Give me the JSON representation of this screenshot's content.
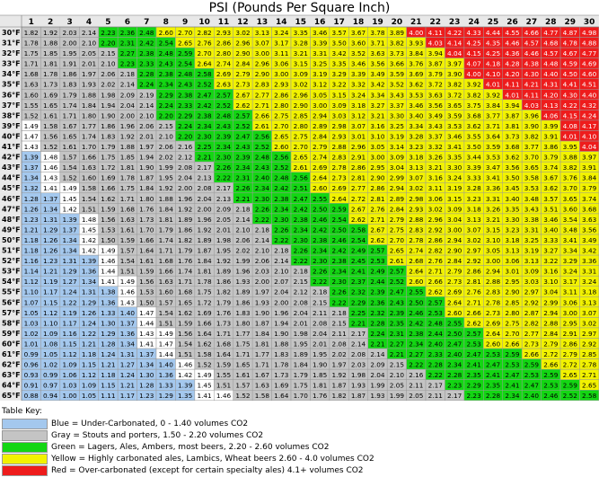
{
  "chart_data": {
    "type": "heatmap",
    "title": "PSI (Pounds Per Square Inch)",
    "xlabel": "",
    "ylabel": "",
    "x": [
      "1",
      "2",
      "3",
      "4",
      "5",
      "6",
      "7",
      "8",
      "9",
      "10",
      "11",
      "12",
      "13",
      "14",
      "15",
      "16",
      "17",
      "18",
      "19",
      "20",
      "21",
      "22",
      "23",
      "24",
      "25",
      "26",
      "27",
      "28",
      "29",
      "30"
    ],
    "y": [
      "30°F",
      "31°F",
      "32°F",
      "33°F",
      "34°F",
      "35°F",
      "36°F",
      "37°F",
      "38°F",
      "39°F",
      "40°F",
      "41°F",
      "42°F",
      "43°F",
      "44°F",
      "45°F",
      "46°F",
      "47°F",
      "48°F",
      "49°F",
      "50°F",
      "51°F",
      "52°F",
      "53°F",
      "54°F",
      "55°F",
      "56°F",
      "57°F",
      "58°F",
      "59°F",
      "60°F",
      "61°F",
      "62°F",
      "63°F",
      "64°F",
      "65°F"
    ],
    "values": [
      [
        1.82,
        1.92,
        2.03,
        2.14,
        2.23,
        2.36,
        2.48,
        2.6,
        2.7,
        2.82,
        2.93,
        3.02,
        3.13,
        3.24,
        3.35,
        3.46,
        3.57,
        3.67,
        3.78,
        3.89,
        4.0,
        4.11,
        4.22,
        4.33,
        4.44,
        4.55,
        4.66,
        4.77,
        4.87,
        4.98
      ],
      [
        1.78,
        1.88,
        2.0,
        2.1,
        2.2,
        2.31,
        2.42,
        2.54,
        2.65,
        2.76,
        2.86,
        2.96,
        3.07,
        3.17,
        3.28,
        3.39,
        3.5,
        3.6,
        3.71,
        3.82,
        3.93,
        4.03,
        4.14,
        4.25,
        4.35,
        4.46,
        4.57,
        4.68,
        4.78,
        4.88
      ],
      [
        1.75,
        1.85,
        1.95,
        2.05,
        2.15,
        2.27,
        2.38,
        2.48,
        2.59,
        2.7,
        2.8,
        2.9,
        3.0,
        3.11,
        3.21,
        3.31,
        3.42,
        3.52,
        3.63,
        3.73,
        3.84,
        3.94,
        4.04,
        4.15,
        4.25,
        4.36,
        4.46,
        4.57,
        4.67,
        4.77
      ],
      [
        1.71,
        1.81,
        1.91,
        2.01,
        2.1,
        2.23,
        2.33,
        2.43,
        2.54,
        2.64,
        2.74,
        2.84,
        2.96,
        3.06,
        3.15,
        3.25,
        3.35,
        3.46,
        3.56,
        3.66,
        3.76,
        3.87,
        3.97,
        4.07,
        4.18,
        4.28,
        4.38,
        4.48,
        4.59,
        4.69
      ],
      [
        1.68,
        1.78,
        1.86,
        1.97,
        2.06,
        2.18,
        2.28,
        2.38,
        2.48,
        2.58,
        2.69,
        2.79,
        2.9,
        3.0,
        3.09,
        3.19,
        3.29,
        3.39,
        3.49,
        3.59,
        3.69,
        3.79,
        3.9,
        4.0,
        4.1,
        4.2,
        4.3,
        4.4,
        4.5,
        4.6
      ],
      [
        1.63,
        1.73,
        1.83,
        1.93,
        2.02,
        2.14,
        2.24,
        2.34,
        2.43,
        2.52,
        2.63,
        2.73,
        2.83,
        2.93,
        3.02,
        3.12,
        3.22,
        3.32,
        3.42,
        3.52,
        3.62,
        3.72,
        3.82,
        3.92,
        4.01,
        4.11,
        4.21,
        4.31,
        4.41,
        4.51
      ],
      [
        1.6,
        1.69,
        1.79,
        1.88,
        1.98,
        2.09,
        2.19,
        2.29,
        2.38,
        2.47,
        2.57,
        2.67,
        2.77,
        2.86,
        2.96,
        3.05,
        3.15,
        3.24,
        3.34,
        3.43,
        3.53,
        3.63,
        3.72,
        3.82,
        3.92,
        4.01,
        4.11,
        4.2,
        4.3,
        4.4
      ],
      [
        1.55,
        1.65,
        1.74,
        1.84,
        1.94,
        2.04,
        2.14,
        2.24,
        2.33,
        2.42,
        2.52,
        2.62,
        2.71,
        2.8,
        2.9,
        3.0,
        3.09,
        3.18,
        3.27,
        3.37,
        3.46,
        3.56,
        3.65,
        3.75,
        3.84,
        3.94,
        4.03,
        4.13,
        4.22,
        4.32
      ],
      [
        1.52,
        1.61,
        1.71,
        1.8,
        1.9,
        2.0,
        2.1,
        2.2,
        2.29,
        2.38,
        2.48,
        2.57,
        2.66,
        2.75,
        2.85,
        2.94,
        3.03,
        3.12,
        3.21,
        3.3,
        3.4,
        3.49,
        3.59,
        3.68,
        3.77,
        3.87,
        3.96,
        4.06,
        4.15,
        4.24
      ],
      [
        1.49,
        1.58,
        1.67,
        1.77,
        1.86,
        1.96,
        2.06,
        2.15,
        2.24,
        2.34,
        2.43,
        2.52,
        2.61,
        2.7,
        2.8,
        2.89,
        2.98,
        3.07,
        3.16,
        3.25,
        3.34,
        3.43,
        3.53,
        3.62,
        3.71,
        3.81,
        3.9,
        3.99,
        4.08,
        4.17
      ],
      [
        1.47,
        1.56,
        1.65,
        1.74,
        1.83,
        1.92,
        2.01,
        2.1,
        2.2,
        2.3,
        2.39,
        2.47,
        2.56,
        2.65,
        2.75,
        2.84,
        2.93,
        3.01,
        3.1,
        3.19,
        3.28,
        3.37,
        3.46,
        3.55,
        3.64,
        3.73,
        3.82,
        3.91,
        4.01,
        4.1
      ],
      [
        1.43,
        1.52,
        1.61,
        1.7,
        1.79,
        1.88,
        1.97,
        2.06,
        2.16,
        2.25,
        2.34,
        2.43,
        2.52,
        2.6,
        2.7,
        2.79,
        2.88,
        2.96,
        3.05,
        3.14,
        3.23,
        3.32,
        3.41,
        3.5,
        3.59,
        3.68,
        3.77,
        3.86,
        3.95,
        4.04
      ],
      [
        1.39,
        1.48,
        1.57,
        1.66,
        1.75,
        1.85,
        1.94,
        2.02,
        2.12,
        2.21,
        2.3,
        2.39,
        2.48,
        2.56,
        2.65,
        2.74,
        2.83,
        2.91,
        3.0,
        3.09,
        3.18,
        3.26,
        3.35,
        3.44,
        3.53,
        3.62,
        3.7,
        3.79,
        3.88,
        3.97
      ],
      [
        1.37,
        1.46,
        1.54,
        1.63,
        1.72,
        1.81,
        1.9,
        1.99,
        2.08,
        2.17,
        2.26,
        2.34,
        2.43,
        2.52,
        2.61,
        2.69,
        2.78,
        2.86,
        2.95,
        3.04,
        3.13,
        3.21,
        3.3,
        3.39,
        3.47,
        3.56,
        3.65,
        3.74,
        3.82,
        3.91
      ],
      [
        1.34,
        1.43,
        1.52,
        1.6,
        1.69,
        1.78,
        1.87,
        1.95,
        2.04,
        2.13,
        2.22,
        2.31,
        2.4,
        2.48,
        2.56,
        2.64,
        2.73,
        2.81,
        2.9,
        2.99,
        3.07,
        3.16,
        3.24,
        3.33,
        3.41,
        3.5,
        3.58,
        3.67,
        3.76,
        3.84
      ],
      [
        1.32,
        1.41,
        1.49,
        1.58,
        1.66,
        1.75,
        1.84,
        1.92,
        2.0,
        2.08,
        2.17,
        2.26,
        2.34,
        2.42,
        2.51,
        2.6,
        2.69,
        2.77,
        2.86,
        2.94,
        3.02,
        3.11,
        3.19,
        3.28,
        3.36,
        3.45,
        3.53,
        3.62,
        3.7,
        3.79
      ],
      [
        1.28,
        1.37,
        1.45,
        1.54,
        1.62,
        1.71,
        1.8,
        1.88,
        1.96,
        2.04,
        2.13,
        2.21,
        2.3,
        2.38,
        2.47,
        2.55,
        2.64,
        2.72,
        2.81,
        2.89,
        2.98,
        3.06,
        3.15,
        3.23,
        3.31,
        3.4,
        3.48,
        3.57,
        3.65,
        3.74
      ],
      [
        1.26,
        1.34,
        1.42,
        1.51,
        1.59,
        1.68,
        1.76,
        1.84,
        1.92,
        2.0,
        2.09,
        2.18,
        2.26,
        2.34,
        2.42,
        2.5,
        2.59,
        2.67,
        2.76,
        2.84,
        2.93,
        3.02,
        3.09,
        3.18,
        3.26,
        3.35,
        3.43,
        3.51,
        3.6,
        3.68
      ],
      [
        1.23,
        1.31,
        1.39,
        1.48,
        1.56,
        1.63,
        1.73,
        1.81,
        1.89,
        1.96,
        2.05,
        2.14,
        2.22,
        2.3,
        2.38,
        2.46,
        2.54,
        2.62,
        2.71,
        2.79,
        2.88,
        2.96,
        3.04,
        3.13,
        3.21,
        3.3,
        3.38,
        3.46,
        3.54,
        3.63
      ],
      [
        1.21,
        1.29,
        1.37,
        1.45,
        1.53,
        1.61,
        1.7,
        1.79,
        1.86,
        1.92,
        2.01,
        2.1,
        2.18,
        2.26,
        2.34,
        2.42,
        2.5,
        2.58,
        2.67,
        2.75,
        2.83,
        2.92,
        3.0,
        3.07,
        3.15,
        3.23,
        3.31,
        3.4,
        3.48,
        3.56
      ],
      [
        1.18,
        1.26,
        1.34,
        1.42,
        1.5,
        1.59,
        1.66,
        1.74,
        1.82,
        1.89,
        1.98,
        2.06,
        2.14,
        2.22,
        2.3,
        2.38,
        2.46,
        2.54,
        2.62,
        2.7,
        2.78,
        2.86,
        2.94,
        3.02,
        3.1,
        3.18,
        3.25,
        3.33,
        3.41,
        3.49
      ],
      [
        1.18,
        1.26,
        1.34,
        1.42,
        1.49,
        1.57,
        1.64,
        1.71,
        1.79,
        1.87,
        1.95,
        2.02,
        2.1,
        2.18,
        2.26,
        2.34,
        2.42,
        2.49,
        2.57,
        2.65,
        2.74,
        2.82,
        2.9,
        2.97,
        3.05,
        3.13,
        3.19,
        3.27,
        3.34,
        3.42
      ],
      [
        1.16,
        1.23,
        1.31,
        1.39,
        1.46,
        1.54,
        1.61,
        1.68,
        1.76,
        1.84,
        1.92,
        1.99,
        2.06,
        2.14,
        2.22,
        2.3,
        2.38,
        2.45,
        2.53,
        2.61,
        2.68,
        2.76,
        2.84,
        2.92,
        3.0,
        3.06,
        3.13,
        3.22,
        3.29,
        3.36
      ],
      [
        1.14,
        1.21,
        1.29,
        1.36,
        1.44,
        1.51,
        1.59,
        1.66,
        1.74,
        1.81,
        1.89,
        1.96,
        2.03,
        2.1,
        2.18,
        2.26,
        2.34,
        2.41,
        2.49,
        2.57,
        2.64,
        2.71,
        2.79,
        2.86,
        2.94,
        3.01,
        3.09,
        3.16,
        3.24,
        3.31
      ],
      [
        1.12,
        1.19,
        1.27,
        1.34,
        1.41,
        1.49,
        1.56,
        1.63,
        1.71,
        1.78,
        1.86,
        1.93,
        2.0,
        2.07,
        2.15,
        2.22,
        2.3,
        2.37,
        2.44,
        2.52,
        2.6,
        2.66,
        2.73,
        2.81,
        2.88,
        2.95,
        3.03,
        3.1,
        3.17,
        3.24
      ],
      [
        1.1,
        1.17,
        1.24,
        1.31,
        1.38,
        1.46,
        1.53,
        1.6,
        1.68,
        1.75,
        1.82,
        1.89,
        1.97,
        2.04,
        2.12,
        2.18,
        2.26,
        2.32,
        2.39,
        2.47,
        2.55,
        2.62,
        2.69,
        2.76,
        2.83,
        2.9,
        2.97,
        3.04,
        3.11,
        3.18
      ],
      [
        1.07,
        1.15,
        1.22,
        1.29,
        1.36,
        1.43,
        1.5,
        1.57,
        1.65,
        1.72,
        1.79,
        1.86,
        1.93,
        2.0,
        2.08,
        2.15,
        2.22,
        2.29,
        2.36,
        2.43,
        2.5,
        2.57,
        2.64,
        2.71,
        2.78,
        2.85,
        2.92,
        2.99,
        3.06,
        3.13
      ],
      [
        1.05,
        1.12,
        1.19,
        1.26,
        1.33,
        1.4,
        1.47,
        1.54,
        1.62,
        1.69,
        1.76,
        1.83,
        1.9,
        1.96,
        2.04,
        2.11,
        2.18,
        2.25,
        2.32,
        2.39,
        2.46,
        2.53,
        2.6,
        2.66,
        2.73,
        2.8,
        2.87,
        2.94,
        3.0,
        3.07
      ],
      [
        1.03,
        1.1,
        1.17,
        1.24,
        1.3,
        1.37,
        1.44,
        1.51,
        1.59,
        1.66,
        1.73,
        1.8,
        1.87,
        1.94,
        2.01,
        2.08,
        2.15,
        2.21,
        2.28,
        2.35,
        2.42,
        2.48,
        2.55,
        2.62,
        2.69,
        2.75,
        2.82,
        2.88,
        2.95,
        3.02
      ],
      [
        1.02,
        1.09,
        1.16,
        1.22,
        1.29,
        1.36,
        1.43,
        1.49,
        1.56,
        1.64,
        1.71,
        1.77,
        1.84,
        1.9,
        1.98,
        2.04,
        2.11,
        2.17,
        2.24,
        2.31,
        2.38,
        2.44,
        2.5,
        2.57,
        2.64,
        2.7,
        2.77,
        2.84,
        2.91,
        2.97
      ],
      [
        1.01,
        1.08,
        1.15,
        1.21,
        1.28,
        1.34,
        1.41,
        1.47,
        1.54,
        1.62,
        1.68,
        1.75,
        1.81,
        1.88,
        1.95,
        2.01,
        2.08,
        2.14,
        2.21,
        2.27,
        2.34,
        2.4,
        2.47,
        2.53,
        2.6,
        2.66,
        2.73,
        2.79,
        2.86,
        2.92
      ],
      [
        0.99,
        1.05,
        1.12,
        1.18,
        1.24,
        1.31,
        1.37,
        1.44,
        1.51,
        1.58,
        1.64,
        1.71,
        1.77,
        1.83,
        1.89,
        1.95,
        2.02,
        2.08,
        2.14,
        2.21,
        2.27,
        2.33,
        2.4,
        2.47,
        2.53,
        2.59,
        2.66,
        2.72,
        2.79,
        2.85
      ],
      [
        0.96,
        1.02,
        1.09,
        1.15,
        1.21,
        1.27,
        1.34,
        1.4,
        1.46,
        1.52,
        1.59,
        1.65,
        1.71,
        1.78,
        1.84,
        1.9,
        1.97,
        2.03,
        2.09,
        2.15,
        2.22,
        2.28,
        2.34,
        2.41,
        2.47,
        2.53,
        2.59,
        2.66,
        2.72,
        2.78
      ],
      [
        0.93,
        0.99,
        1.06,
        1.12,
        1.18,
        1.24,
        1.3,
        1.36,
        1.42,
        1.49,
        1.55,
        1.61,
        1.67,
        1.73,
        1.79,
        1.85,
        1.92,
        1.98,
        2.04,
        2.1,
        2.16,
        2.22,
        2.28,
        2.35,
        2.41,
        2.47,
        2.53,
        2.59,
        2.65,
        2.71
      ],
      [
        0.91,
        0.97,
        1.03,
        1.09,
        1.15,
        1.21,
        1.28,
        1.33,
        1.39,
        1.45,
        1.51,
        1.57,
        1.63,
        1.69,
        1.75,
        1.81,
        1.87,
        1.93,
        1.99,
        2.05,
        2.11,
        2.17,
        2.23,
        2.29,
        2.35,
        2.41,
        2.47,
        2.53,
        2.59,
        2.65
      ],
      [
        0.88,
        0.94,
        1.0,
        1.05,
        1.11,
        1.17,
        1.23,
        1.29,
        1.35,
        1.41,
        1.46,
        1.52,
        1.58,
        1.64,
        1.7,
        1.76,
        1.82,
        1.87,
        1.93,
        1.99,
        2.05,
        2.11,
        2.17,
        2.23,
        2.28,
        2.34,
        2.4,
        2.46,
        2.52,
        2.58
      ]
    ],
    "colors": {
      "blue": "#a4c8ee",
      "gray": "#c4c4c4",
      "green": "#13d613",
      "yellow": "#f2f200",
      "red": "#ee1c1c",
      "white": "#ffffff",
      "header_bg": "#e8e8e8"
    },
    "legend": {
      "title": "Table Key:",
      "entries": [
        {
          "color": "#a4c8ee",
          "label": "Blue = Under-Carbonated, 0 - 1.40 volumes CO2"
        },
        {
          "color": "#c4c4c4",
          "label": "Gray = Stouts and porters, 1.50 - 2.20 volumes CO2"
        },
        {
          "color": "#13d613",
          "label": "Green = Lagers, Ales, Ambers, most beers, 2.20 - 2.60 volumes CO2"
        },
        {
          "color": "#f2f200",
          "label": "Yellow = Highly carbonated ales, Lambics, Wheat beers 2.60 - 4.0 volumes CO2"
        },
        {
          "color": "#ee1c1c",
          "label": "Red = Over-carbonated (except for certain specialty ales) 4.1+ volumes CO2"
        }
      ]
    }
  }
}
